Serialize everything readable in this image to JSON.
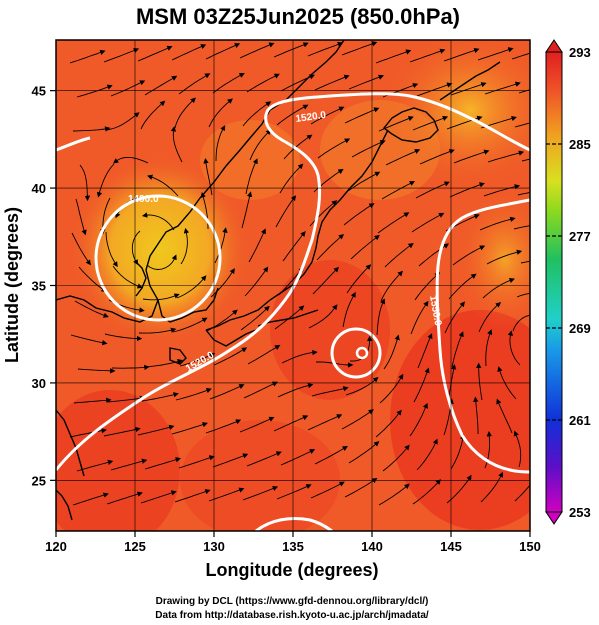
{
  "title": "MSM 03Z25Jun2025 (850.0hPa)",
  "x_axis": {
    "label": "Longitude (degrees)",
    "range": [
      120,
      150
    ],
    "ticks": [
      "120",
      "125",
      "130",
      "135",
      "140",
      "145",
      "150"
    ]
  },
  "y_axis": {
    "label": "Latitude  (degrees)",
    "range": [
      22.4,
      47.6
    ],
    "ticks": [
      "25",
      "30",
      "35",
      "40",
      "45"
    ]
  },
  "colorbar": {
    "min": 253,
    "max": 293,
    "ticks": [
      "253",
      "261",
      "269",
      "277",
      "285",
      "293"
    ],
    "colors": [
      "#d000c0",
      "#5a10c8",
      "#1030d8",
      "#1898e8",
      "#20d0c8",
      "#20c060",
      "#88d820",
      "#d8e020",
      "#f0a020",
      "#f05028",
      "#e02020"
    ]
  },
  "contours": [
    {
      "label": "1520.0",
      "location": "northern Japan / Hokkaido"
    },
    {
      "label": "1490.0",
      "location": "low center over Korea / Yellow Sea"
    },
    {
      "label": "1520.0",
      "location": "East China Sea"
    },
    {
      "label": "1550.0",
      "location": "western Pacific high"
    }
  ],
  "credits": {
    "line1": "Drawing by DCL (https://www.gfd-dennou.org/library/dcl/)",
    "line2": "Data from http://database.rish.kyoto-u.ac.jp/arch/jmadata/"
  },
  "colors": {
    "field_warm": "#f05a28",
    "field_hot": "#e82a1c",
    "field_orange": "#f59a22",
    "field_yellow": "#f0c81e",
    "contour": "#ffffff",
    "coast": "#000000",
    "streamline": "#000000"
  }
}
